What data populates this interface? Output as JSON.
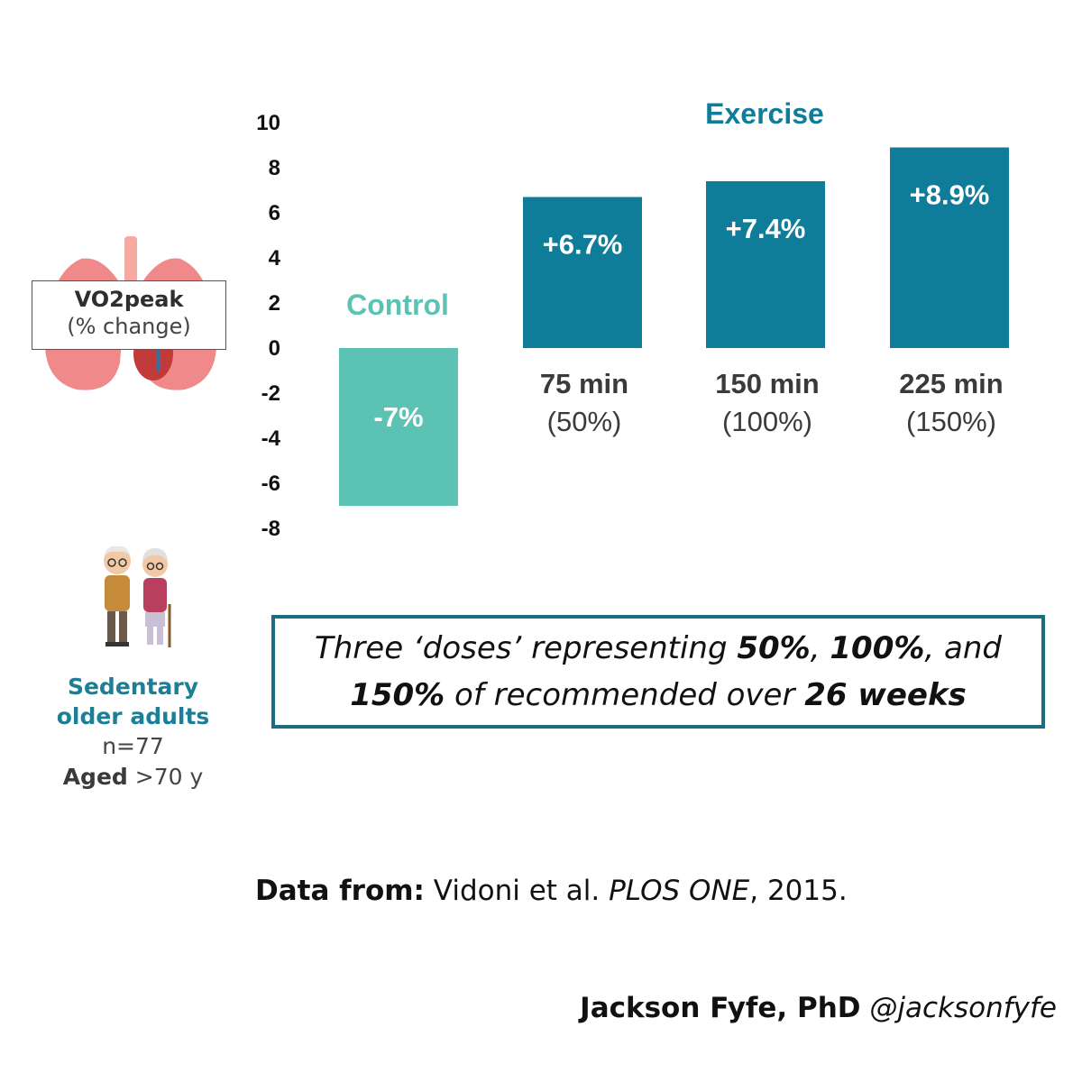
{
  "chart_data": {
    "type": "bar",
    "categories": [
      "Control",
      "75 min (50%)",
      "150 min (100%)",
      "225 min (150%)"
    ],
    "values": [
      -7,
      6.7,
      7.4,
      8.9
    ],
    "value_labels": [
      "-7%",
      "+6.7%",
      "+7.4%",
      "+8.9%"
    ],
    "category_labels": [
      {
        "main": "",
        "sub": ""
      },
      {
        "main": "75 min",
        "sub": "(50%)"
      },
      {
        "main": "150 min",
        "sub": "(100%)"
      },
      {
        "main": "225 min",
        "sub": "(150%)"
      }
    ],
    "group_labels": [
      "Control",
      "Exercise"
    ],
    "colors": {
      "control": "#5cc2b4",
      "exercise": "#0f7c99"
    },
    "ylim": [
      -8,
      10
    ],
    "yticks": [
      10,
      8,
      6,
      4,
      2,
      0,
      -2,
      -4,
      -6,
      -8
    ],
    "ylabel_main": "VO2peak",
    "ylabel_sub": "(% change)",
    "grid": false
  },
  "population": {
    "label_line1": "Sedentary",
    "label_line2": "older adults",
    "n_text": "n=77",
    "aged_label": "Aged",
    "aged_value": ">70 y"
  },
  "note": {
    "part1": "Three ‘doses’ representing ",
    "bold1": "50%",
    "part2": ", ",
    "bold2": "100%",
    "part3": ", and ",
    "bold3": "150%",
    "part4": " of recommended over ",
    "bold4": "26 weeks"
  },
  "source": {
    "label": "Data from:",
    "authors": " Vidoni et al. ",
    "journal": "PLOS ONE",
    "year": ", 2015."
  },
  "author": {
    "name": "Jackson Fyfe, PhD",
    "handle": " @jacksonfyfe"
  },
  "icons": [
    "lungs-icon",
    "older-couple-icon"
  ]
}
